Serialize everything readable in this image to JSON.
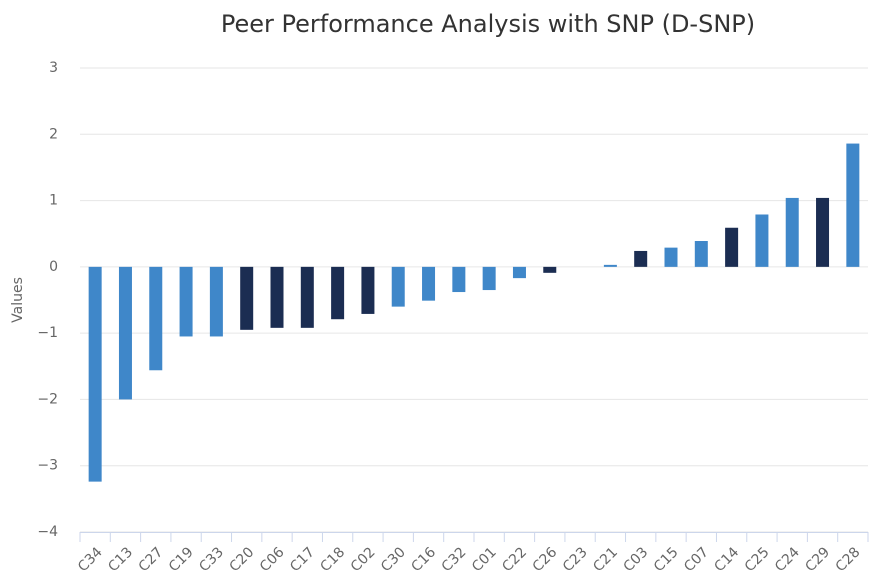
{
  "chart_data": {
    "type": "bar",
    "title": "Peer Performance Analysis with SNP (D-SNP)",
    "y_label": "Values",
    "categories": [
      "C34",
      "C13",
      "C27",
      "C19",
      "C33",
      "C20",
      "C06",
      "C17",
      "C18",
      "C02",
      "C30",
      "C16",
      "C32",
      "C01",
      "C22",
      "C26",
      "C23",
      "C21",
      "C03",
      "C15",
      "C07",
      "C14",
      "C25",
      "C24",
      "C29",
      "C28"
    ],
    "values": [
      -3.24,
      -2.0,
      -1.56,
      -1.05,
      -1.05,
      -0.95,
      -0.92,
      -0.92,
      -0.79,
      -0.71,
      -0.6,
      -0.51,
      -0.38,
      -0.35,
      -0.17,
      -0.09,
      0,
      0.03,
      0.24,
      0.29,
      0.39,
      0.59,
      0.79,
      1.04,
      1.04,
      1.86
    ],
    "colors": [
      "#3f87c9",
      "#3f87c9",
      "#3f87c9",
      "#3f87c9",
      "#3f87c9",
      "#1b2d52",
      "#1b2d52",
      "#1b2d52",
      "#1b2d52",
      "#1b2d52",
      "#3f87c9",
      "#3f87c9",
      "#3f87c9",
      "#3f87c9",
      "#3f87c9",
      "#1b2d52",
      "#3f87c9",
      "#3f87c9",
      "#1b2d52",
      "#3f87c9",
      "#3f87c9",
      "#1b2d52",
      "#3f87c9",
      "#3f87c9",
      "#1b2d52",
      "#3f87c9"
    ],
    "ylim": [
      -4,
      3
    ],
    "yticks": [
      {
        "value": -4,
        "label": "−4"
      },
      {
        "value": -3,
        "label": "−3"
      },
      {
        "value": -2,
        "label": "−2"
      },
      {
        "value": -1,
        "label": "−1"
      },
      0,
      1,
      2,
      3
    ],
    "grid": true
  }
}
